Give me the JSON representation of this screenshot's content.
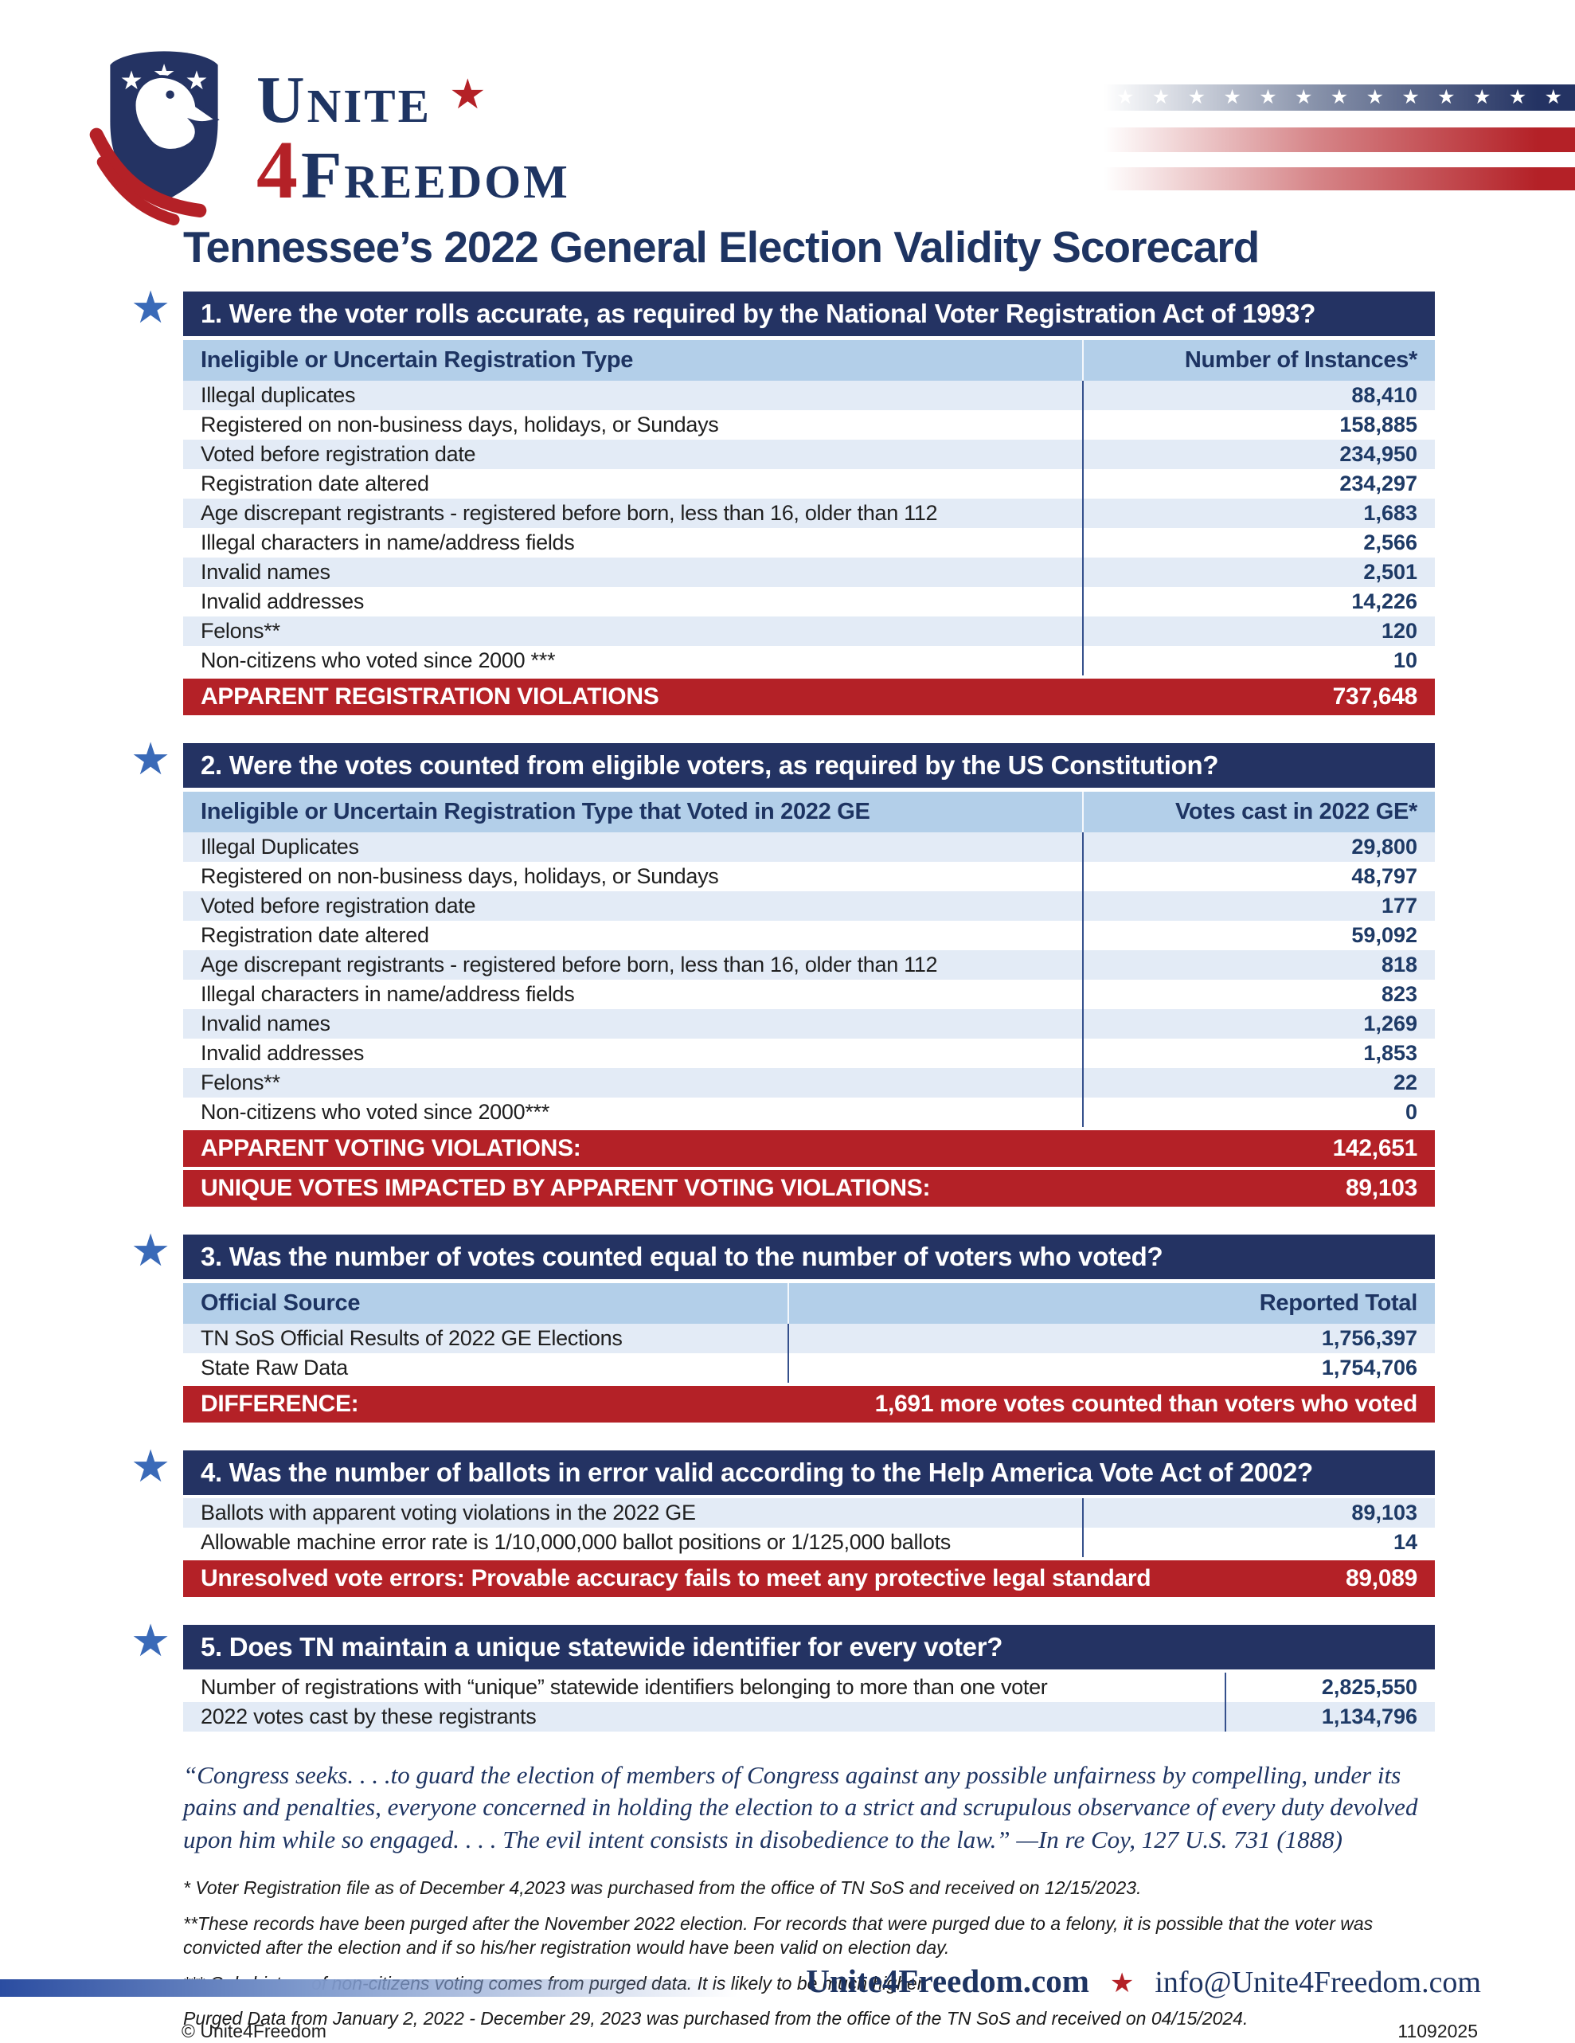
{
  "icons": {
    "star": "★"
  },
  "colors": {
    "navy": "#243363",
    "title_navy": "#1e3462",
    "red": "#b42127",
    "colhead_blue": "#b3cfe9",
    "row_blue": "#e3ebf6",
    "star_blue": "#3a6ab8"
  },
  "logo": {
    "word1": "Unite",
    "number": "4",
    "word2": "Freedom"
  },
  "title": "Tennessee’s 2022 General Election Validity Scorecard",
  "sections": [
    {
      "title": "1. Were the voter rolls accurate, as required by the National Voter Registration Act of 1993?",
      "columns": [
        "Ineligible or Uncertain Registration Type",
        "Number of Instances*"
      ],
      "rows": [
        [
          "Illegal duplicates",
          "88,410"
        ],
        [
          "Registered on non-business days, holidays, or Sundays",
          "158,885"
        ],
        [
          "Voted before registration date",
          "234,950"
        ],
        [
          "Registration date altered",
          "234,297"
        ],
        [
          "Age discrepant registrants - registered before born, less than 16, older than 112",
          "1,683"
        ],
        [
          "Illegal characters in name/address fields",
          "2,566"
        ],
        [
          "Invalid names",
          "2,501"
        ],
        [
          "Invalid addresses",
          "14,226"
        ],
        [
          "Felons**",
          "120"
        ],
        [
          "Non-citizens who voted since 2000 ***",
          "10"
        ]
      ],
      "totals": [
        [
          "APPARENT REGISTRATION VIOLATIONS",
          "737,648"
        ]
      ]
    },
    {
      "title": "2. Were the votes counted from eligible voters, as required by the US Constitution?",
      "columns": [
        "Ineligible or Uncertain Registration Type that Voted in 2022 GE",
        "Votes cast in 2022 GE*"
      ],
      "rows": [
        [
          "Illegal Duplicates",
          "29,800"
        ],
        [
          "Registered on non-business days, holidays, or Sundays",
          "48,797"
        ],
        [
          "Voted before registration date",
          "177"
        ],
        [
          "Registration date altered",
          "59,092"
        ],
        [
          "Age discrepant registrants - registered before born, less than 16, older than 112",
          "818"
        ],
        [
          "Illegal characters in name/address fields",
          "823"
        ],
        [
          "Invalid names",
          "1,269"
        ],
        [
          "Invalid addresses",
          "1,853"
        ],
        [
          "Felons**",
          "22"
        ],
        [
          "Non-citizens who voted since 2000***",
          "0"
        ]
      ],
      "totals": [
        [
          "APPARENT VOTING VIOLATIONS:",
          "142,651"
        ],
        [
          "UNIQUE VOTES IMPACTED BY APPARENT VOTING VIOLATIONS:",
          "89,103"
        ]
      ]
    },
    {
      "title": "3. Was the number of votes counted equal to the number of voters who voted?",
      "columns": [
        "Official Source",
        "Reported Total"
      ],
      "rows": [
        [
          "TN SoS Official Results of 2022 GE Elections",
          "1,756,397"
        ],
        [
          "State Raw Data",
          "1,754,706"
        ]
      ],
      "totals": [
        [
          "DIFFERENCE:",
          "1,691 more votes counted than voters who voted"
        ]
      ]
    },
    {
      "title": "4. Was the number of ballots in error valid according to the Help America Vote Act of 2002?",
      "columns": null,
      "rows": [
        [
          "Ballots with apparent voting violations in the 2022 GE",
          "89,103"
        ],
        [
          "Allowable machine error rate is 1/10,000,000 ballot positions or 1/125,000 ballots",
          "14"
        ]
      ],
      "totals": [
        [
          "Unresolved vote errors: Provable accuracy fails to meet any protective legal standard",
          "89,089"
        ]
      ]
    },
    {
      "title": "5. Does TN maintain a unique statewide identifier for every voter?",
      "columns": null,
      "rows": [
        [
          "Number of registrations with “unique” statewide identifiers belonging to more than one voter",
          "2,825,550"
        ],
        [
          "2022 votes cast by these registrants",
          "1,134,796"
        ]
      ],
      "totals": []
    }
  ],
  "quote": {
    "text": "“Congress seeks. . . .to guard the election of members of Congress against any possible unfairness by compelling, under its pains and penalties, everyone concerned in holding the election to a strict and scrupulous observance of every duty devolved upon him while so engaged. . . . The evil intent consists in disobedience to the law.”",
    "attribution": "—In re Coy, 127 U.S. 731 (1888)"
  },
  "footnotes": [
    "* Voter Registration file as of December 4,2023 was purchased from the office of TN SoS and received on 12/15/2023.",
    "**These records have been purged after the November 2022 election.  For records that were purged due to a felony, it is possible that the voter was convicted after the election and if so his/her registration would have been valid on election day.",
    "*** Only history of non-citizens voting comes from purged data. It is likely to be much higher.",
    "Purged Data from January 2, 2022 - December 29, 2023 was purchased from the office of the TN SoS and received on 04/15/2024."
  ],
  "footer": {
    "website": "Unite4Freedom.com",
    "email": "info@Unite4Freedom.com",
    "copyright": "© Unite4Freedom",
    "code": "11092025"
  }
}
